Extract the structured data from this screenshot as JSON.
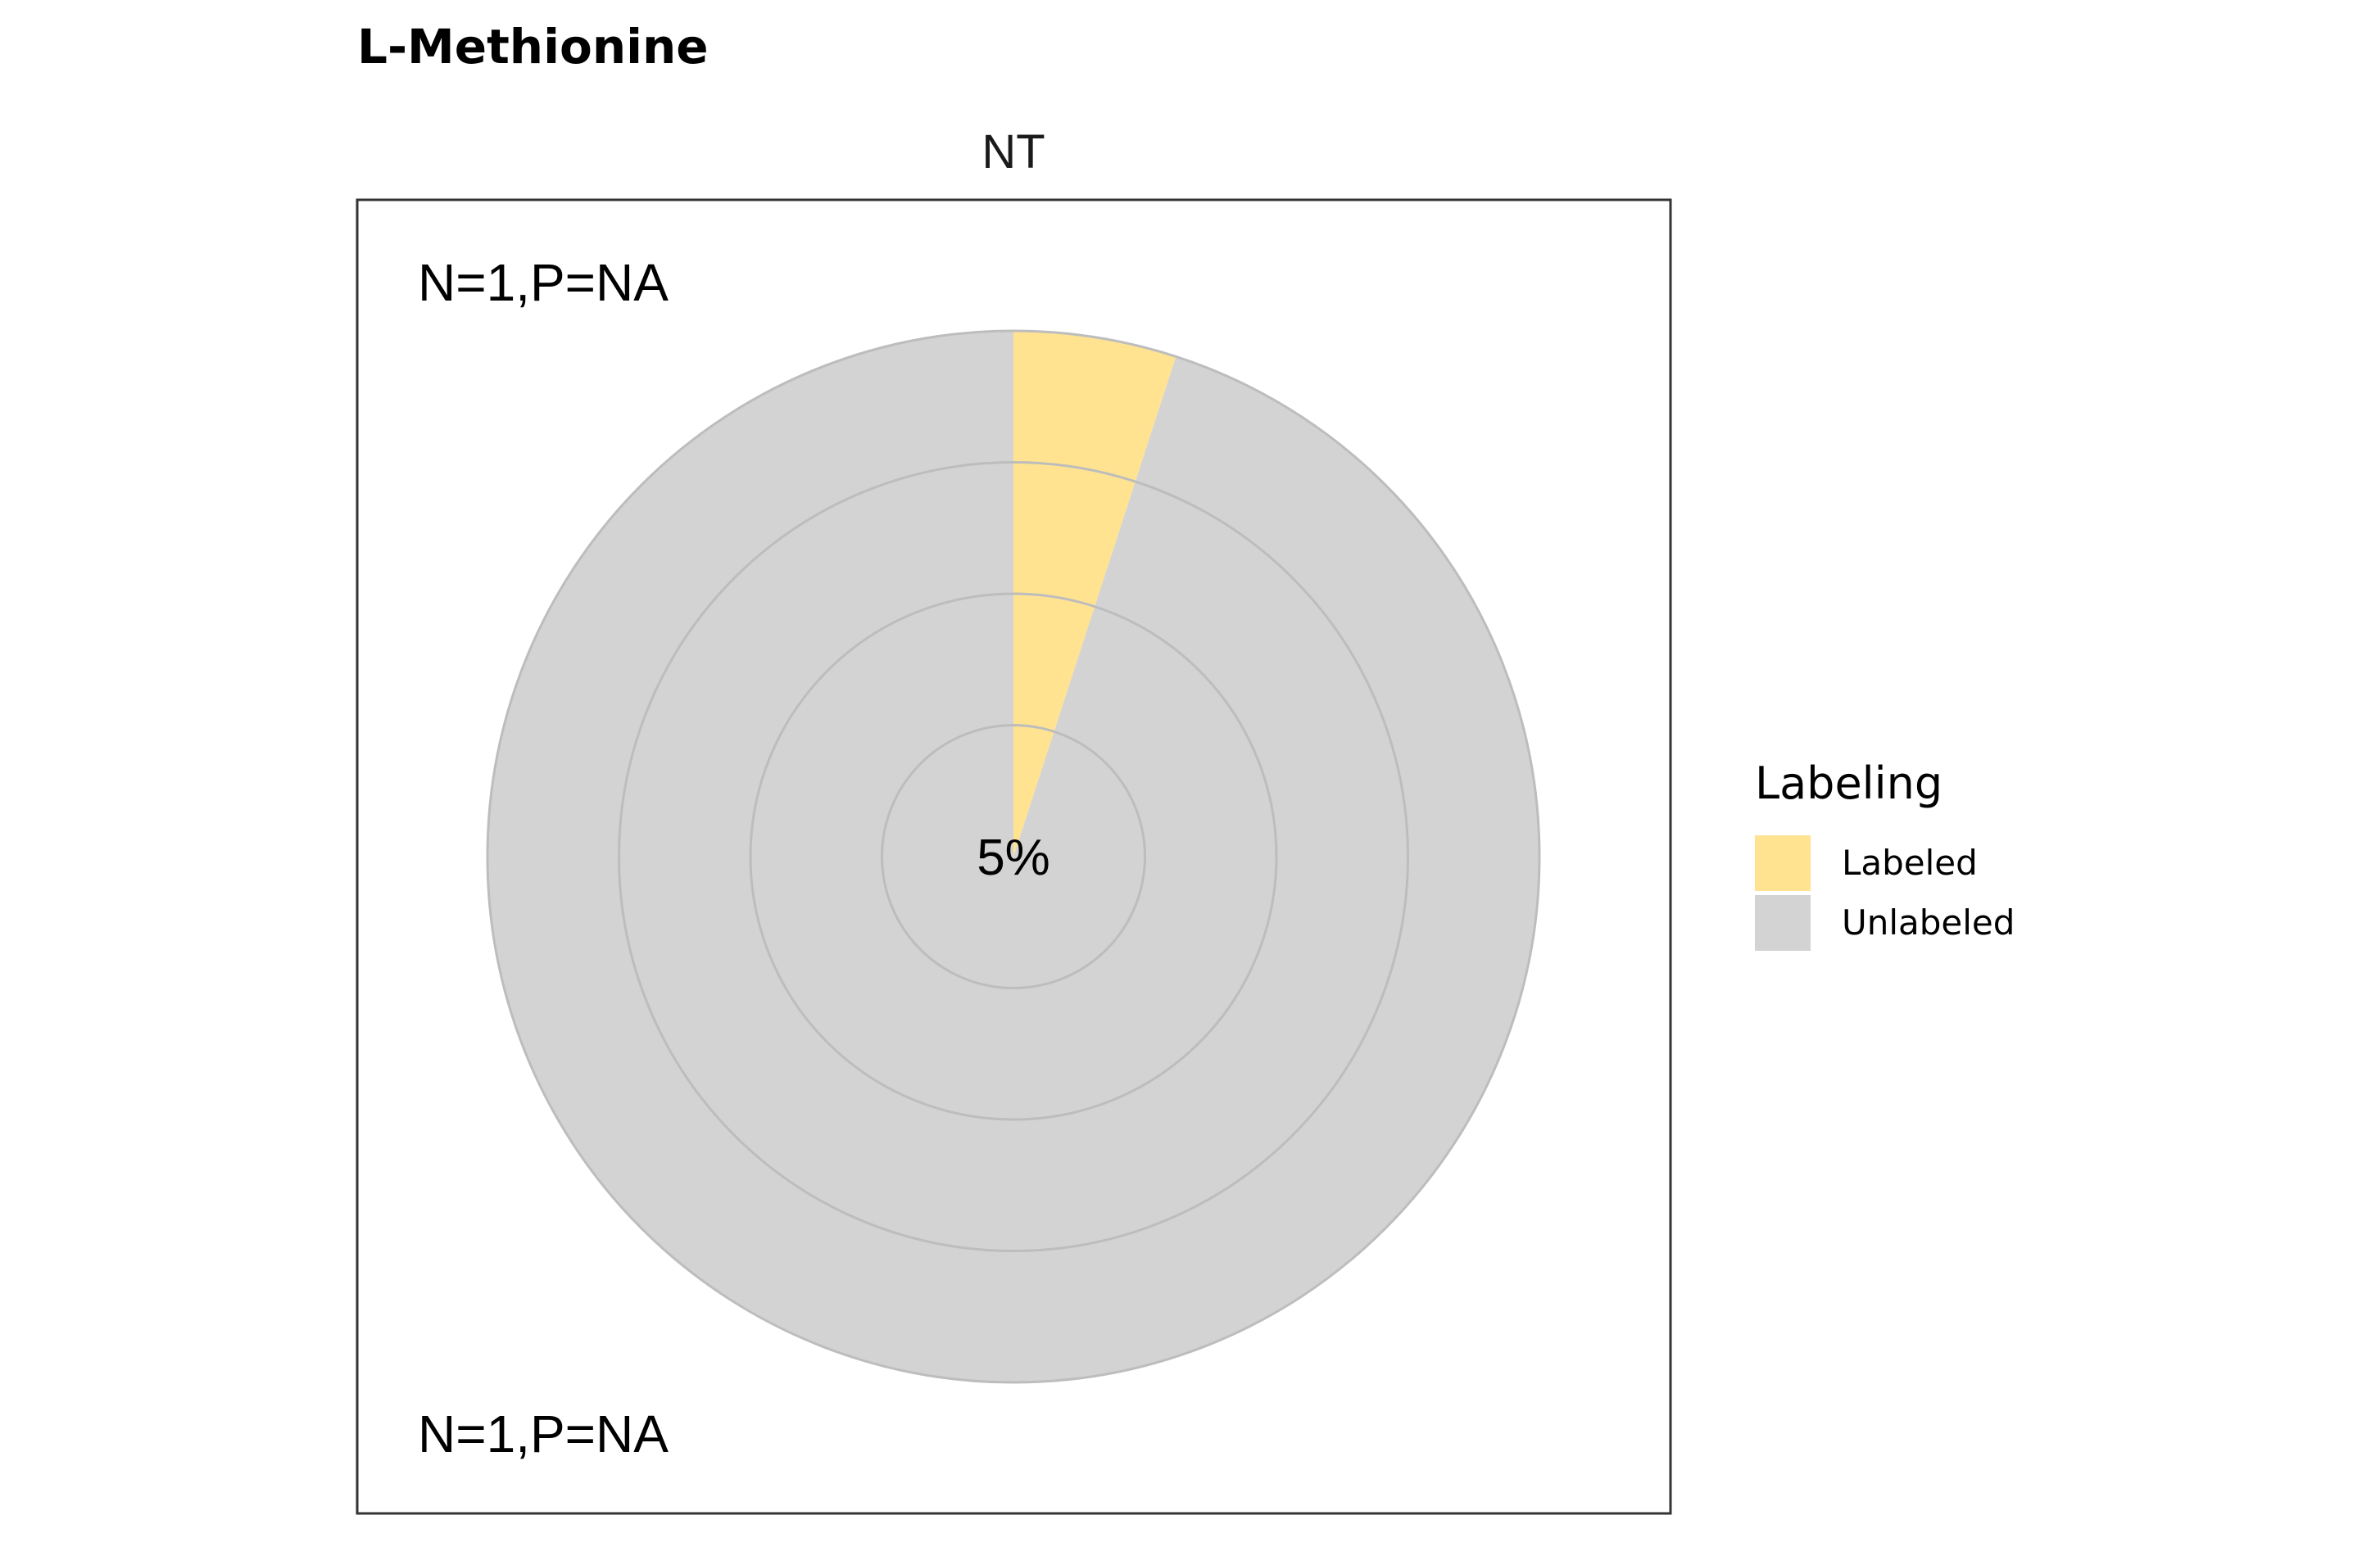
{
  "chart_data": {
    "type": "pie",
    "title": "L-Methionine",
    "facet_label": "NT",
    "slices": [
      {
        "name": "Labeled",
        "value": 5,
        "color": "#FFE391"
      },
      {
        "name": "Unlabeled",
        "value": 95,
        "color": "#D3D3D3"
      }
    ],
    "center_label": "5%",
    "annotations": {
      "top": "N=1,P=NA",
      "bottom": "N=1,P=NA"
    },
    "legend": {
      "title": "Labeling",
      "position": "right",
      "items": [
        {
          "label": "Labeled",
          "color": "#FFE391"
        },
        {
          "label": "Unlabeled",
          "color": "#D3D3D3"
        }
      ]
    },
    "rings": 4,
    "grid": true
  }
}
